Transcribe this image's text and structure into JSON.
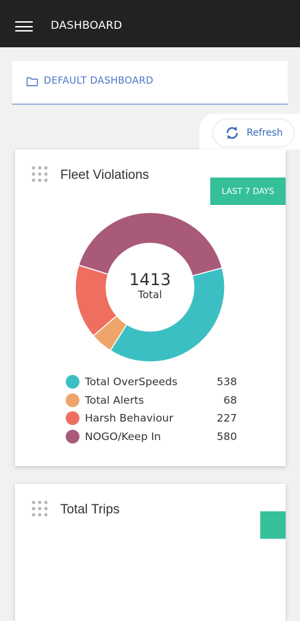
{
  "header": {
    "title": "DASHBOARD",
    "menu_icon": "hamburger-icon"
  },
  "dashboard_selector": {
    "label": "DEFAULT DASHBOARD",
    "icon": "folder-icon",
    "color": "#4b73c4"
  },
  "refresh": {
    "label": "Refresh",
    "icon": "refresh-icon"
  },
  "fleet_violations": {
    "title": "Fleet Violations",
    "period_button": "LAST 7 DAYS",
    "center_total": "1413",
    "center_label": "Total",
    "legend": [
      {
        "label": "Total OverSpeeds",
        "value": "538",
        "color": "#3cbfc2"
      },
      {
        "label": "Total Alerts",
        "value": "68",
        "color": "#eea46a"
      },
      {
        "label": "Harsh Behaviour",
        "value": "227",
        "color": "#ee6e60"
      },
      {
        "label": "NOGO/Keep In",
        "value": "580",
        "color": "#a85a78"
      }
    ]
  },
  "total_trips": {
    "title": "Total Trips"
  },
  "colors": {
    "accent_green": "#35c09a",
    "topbar": "#222222"
  },
  "chart_data": {
    "type": "pie",
    "title": "Fleet Violations",
    "categories": [
      "Total OverSpeeds",
      "Total Alerts",
      "Harsh Behaviour",
      "NOGO/Keep In"
    ],
    "values": [
      538,
      68,
      227,
      580
    ],
    "colors": [
      "#3cbfc2",
      "#eea46a",
      "#ee6e60",
      "#a85a78"
    ],
    "total": 1413,
    "legend": "bottom"
  }
}
